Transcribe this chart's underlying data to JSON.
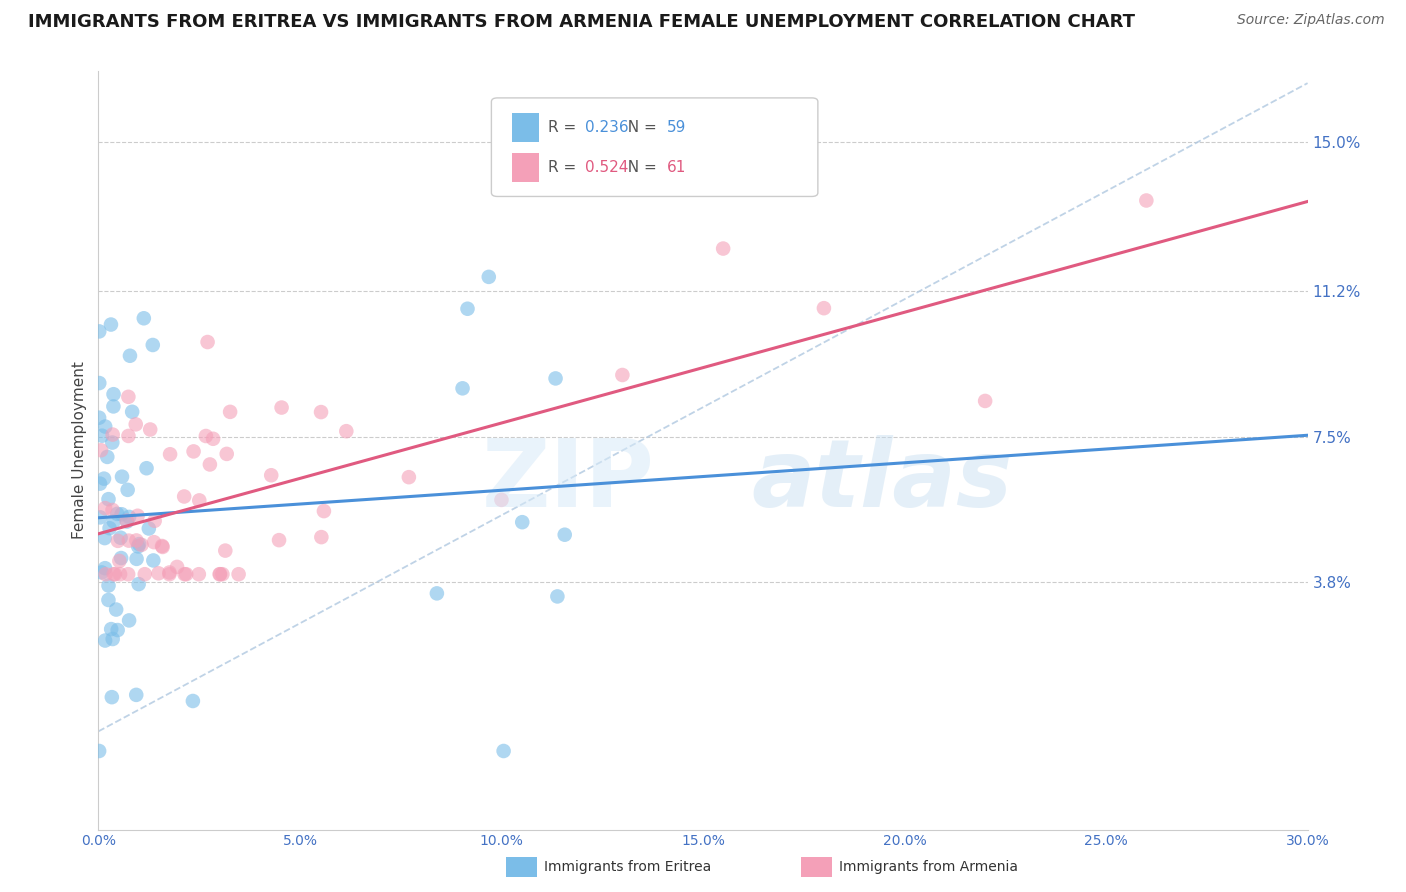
{
  "title": "IMMIGRANTS FROM ERITREA VS IMMIGRANTS FROM ARMENIA FEMALE UNEMPLOYMENT CORRELATION CHART",
  "source": "Source: ZipAtlas.com",
  "ylabel": "Female Unemployment",
  "xlim": [
    0.0,
    0.3
  ],
  "ylim_low": -0.025,
  "ylim_high": 0.168,
  "yticks": [
    0.038,
    0.075,
    0.112,
    0.15
  ],
  "ytick_labels": [
    "3.8%",
    "7.5%",
    "11.2%",
    "15.0%"
  ],
  "xticks": [
    0.0,
    0.05,
    0.1,
    0.15,
    0.2,
    0.25,
    0.3
  ],
  "xtick_labels": [
    "0.0%",
    "5.0%",
    "10.0%",
    "15.0%",
    "20.0%",
    "25.0%",
    "30.0%"
  ],
  "eritrea_color": "#7bbde8",
  "armenia_color": "#f4a0b8",
  "eritrea_line_color": "#4a90d9",
  "armenia_line_color": "#e05a80",
  "eritrea_label": "Immigrants from Eritrea",
  "armenia_label": "Immigrants from Armenia",
  "eritrea_R": "0.236",
  "eritrea_N": "59",
  "armenia_R": "0.524",
  "armenia_N": "61",
  "legend_color_eritrea": "#4a90d9",
  "legend_color_armenia": "#e05a80",
  "background_color": "#ffffff",
  "grid_color": "#cccccc",
  "axis_color": "#4472c4",
  "title_fontsize": 13,
  "source_fontsize": 10
}
